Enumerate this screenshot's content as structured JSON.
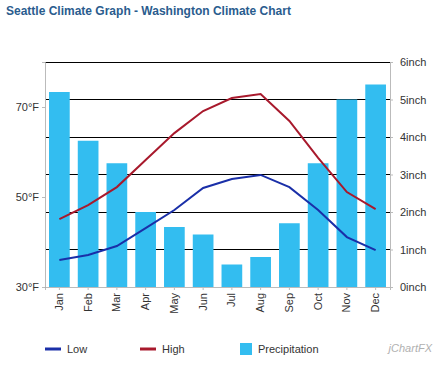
{
  "chart_data": {
    "type": "line",
    "title": "Seattle Climate Graph - Washington Climate Chart",
    "categories": [
      "Jan",
      "Feb",
      "Mar",
      "Apr",
      "May",
      "Jun",
      "Jul",
      "Aug",
      "Sep",
      "Oct",
      "Nov",
      "Dec"
    ],
    "series": [
      {
        "name": "Low",
        "type": "line",
        "color": "#1a2fa8",
        "values": [
          36,
          37.1,
          39.1,
          43.1,
          47.1,
          52,
          54,
          54.9,
          52.2,
          47.1,
          41.1,
          38.2
        ]
      },
      {
        "name": "High",
        "type": "line",
        "color": "#a8192c",
        "values": [
          45.1,
          48.2,
          52.2,
          58.2,
          64.2,
          69.1,
          72,
          72.9,
          66.9,
          58.7,
          51.1,
          47.3
        ]
      },
      {
        "name": "Precipitation",
        "type": "bar",
        "axis": "y2",
        "color": "#33bdf0",
        "values": [
          5.2,
          3.9,
          3.3,
          2.0,
          1.6,
          1.4,
          0.6,
          0.8,
          1.7,
          3.3,
          5.0,
          5.4
        ]
      }
    ],
    "ylim": [
      30,
      80
    ],
    "yticks": [
      {
        "value": 30,
        "label": "30°F"
      },
      {
        "value": 50,
        "label": "50°F"
      },
      {
        "value": 70,
        "label": "70°F"
      }
    ],
    "y2lim": [
      0,
      6
    ],
    "y2ticks": [
      {
        "value": 0,
        "label": "0inch"
      },
      {
        "value": 1,
        "label": "1inch"
      },
      {
        "value": 2,
        "label": "2inch"
      },
      {
        "value": 3,
        "label": "3inch"
      },
      {
        "value": 4,
        "label": "4inch"
      },
      {
        "value": 5,
        "label": "5inch"
      },
      {
        "value": 6,
        "label": "6inch"
      }
    ],
    "grid": true,
    "legend": "bottom",
    "annotations": [
      "jChartFX"
    ]
  }
}
